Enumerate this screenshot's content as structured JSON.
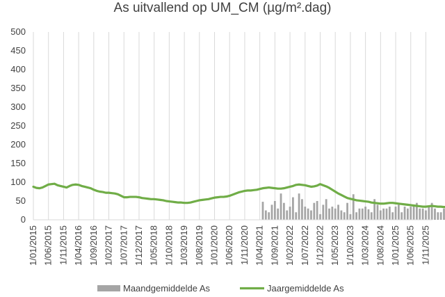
{
  "chart_data": {
    "type": "bar",
    "title": "As uitvallend op UM_CM (µg/m².dag)",
    "xlabel": "",
    "ylabel": "",
    "ylim": [
      0,
      500
    ],
    "yticks": [
      "0",
      "50",
      "100",
      "150",
      "200",
      "250",
      "300",
      "350",
      "400",
      "450",
      "500"
    ],
    "x_tick_labels": [
      "1/01/2015",
      "1/06/2015",
      "1/11/2015",
      "1/04/2016",
      "1/09/2016",
      "1/02/2017",
      "1/07/2017",
      "1/12/2017",
      "1/05/2018",
      "1/10/2018",
      "1/03/2019",
      "1/08/2019",
      "1/01/2020",
      "1/06/2020",
      "1/11/2020",
      "1/04/2021",
      "1/09/2021",
      "1/02/2022",
      "1/07/2022",
      "1/12/2022",
      "1/05/2023",
      "1/10/2023",
      "1/03/2024",
      "1/08/2024",
      "1/01/2025",
      "1/06/2025",
      "1/11/2025"
    ],
    "grid": "vertical",
    "legend_position": "bottom",
    "series": [
      {
        "name": "Maandgemiddelde As",
        "type": "bar",
        "color": "#a5a5a5",
        "start": "2021-05",
        "values": [
          48,
          25,
          20,
          40,
          50,
          30,
          70,
          45,
          25,
          35,
          60,
          20,
          70,
          55,
          35,
          30,
          25,
          45,
          50,
          15,
          40,
          55,
          30,
          35,
          30,
          40,
          25,
          20,
          45,
          15,
          68,
          20,
          30,
          30,
          35,
          28,
          20,
          55,
          40,
          25,
          30,
          30,
          35,
          20,
          35,
          40,
          20,
          35,
          30,
          35,
          40,
          45,
          30,
          30,
          25,
          35,
          45,
          30,
          20,
          20,
          30,
          25,
          35,
          45,
          20,
          30,
          25,
          75,
          30,
          30,
          55,
          40,
          45
        ]
      },
      {
        "name": "Jaargemiddelde As",
        "type": "line",
        "color": "#70ad47",
        "start": "2015-01",
        "values": [
          88,
          85,
          84,
          86,
          90,
          94,
          95,
          96,
          92,
          90,
          88,
          86,
          90,
          93,
          94,
          93,
          90,
          88,
          86,
          84,
          80,
          77,
          75,
          74,
          72,
          72,
          71,
          70,
          68,
          64,
          60,
          60,
          61,
          61,
          61,
          60,
          58,
          57,
          56,
          55,
          55,
          54,
          53,
          52,
          50,
          49,
          48,
          47,
          46,
          46,
          45,
          45,
          46,
          48,
          50,
          52,
          53,
          54,
          55,
          57,
          59,
          60,
          61,
          61,
          62,
          64,
          67,
          70,
          73,
          75,
          77,
          78,
          78,
          79,
          80,
          82,
          84,
          85,
          86,
          85,
          84,
          83,
          83,
          84,
          86,
          88,
          90,
          93,
          94,
          93,
          92,
          90,
          88,
          89,
          91,
          95,
          92,
          89,
          85,
          80,
          75,
          70,
          66,
          62,
          58,
          56,
          54,
          52,
          51,
          50,
          49,
          48,
          46,
          45,
          44,
          43,
          43,
          44,
          45,
          45,
          44,
          43,
          42,
          41,
          40,
          39,
          38,
          37,
          36,
          35,
          35,
          36,
          37,
          36,
          35,
          35,
          34,
          34,
          34,
          34,
          34,
          34,
          33,
          33,
          33,
          34,
          34,
          34,
          34,
          35,
          35,
          34,
          34,
          33,
          33,
          33,
          33,
          32,
          32,
          32,
          32,
          31,
          31,
          32,
          33,
          34,
          35,
          36,
          37,
          37,
          37,
          36
        ]
      }
    ]
  }
}
